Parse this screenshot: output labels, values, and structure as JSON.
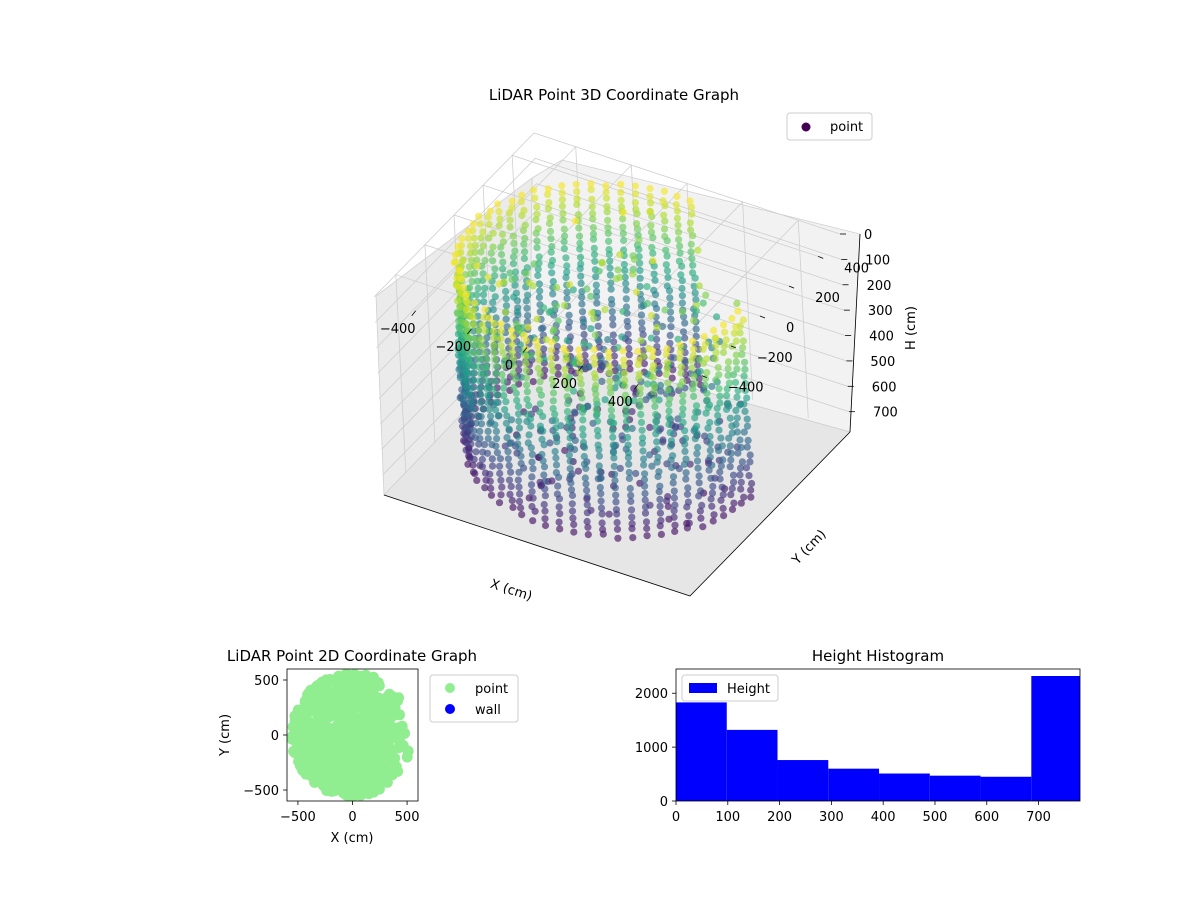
{
  "chart_data": [
    {
      "type": "scatter",
      "projection": "3d",
      "title": "LiDAR Point 3D Coordinate Graph",
      "xlabel": "X (cm)",
      "ylabel": "Y (cm)",
      "zlabel": "H (cm)",
      "xlim": [
        -550,
        550
      ],
      "ylim": [
        -550,
        550
      ],
      "zlim": [
        0,
        780
      ],
      "z_axis_inverted": true,
      "x_ticks": [
        "−400",
        "−200",
        "0",
        "200",
        "400"
      ],
      "x_tick_values": [
        -400,
        -200,
        0,
        200,
        400
      ],
      "y_ticks": [
        "−400",
        "−200",
        "0",
        "200",
        "400"
      ],
      "y_tick_values": [
        -400,
        -200,
        0,
        200,
        400
      ],
      "z_ticks": [
        "0",
        "100",
        "200",
        "300",
        "400",
        "500",
        "600",
        "700"
      ],
      "z_tick_values": [
        0,
        100,
        200,
        300,
        400,
        500,
        600,
        700
      ],
      "colormap": "viridis",
      "legend": {
        "entries": [
          "point"
        ],
        "placement": "top-right"
      },
      "grid": true,
      "series": [
        {
          "name": "point",
          "description": "dense cylindrical wall of points, radius ~480 cm, height 0-760 cm, open at +X/+Y side"
        }
      ]
    },
    {
      "type": "scatter",
      "title": "LiDAR Point 2D Coordinate Graph",
      "xlabel": "X (cm)",
      "ylabel": "Y (cm)",
      "xlim": [
        -600,
        600
      ],
      "ylim": [
        -600,
        600
      ],
      "x_ticks": [
        "−500",
        "0",
        "500"
      ],
      "x_tick_values": [
        -500,
        0,
        500
      ],
      "y_ticks": [
        "−500",
        "0",
        "500"
      ],
      "y_tick_values": [
        -500,
        0,
        500
      ],
      "legend": {
        "entries": [
          "point",
          "wall"
        ],
        "placement": "outside-right"
      },
      "series": [
        {
          "name": "point",
          "color": "#90ee90"
        },
        {
          "name": "wall",
          "color": "#0000ff"
        }
      ]
    },
    {
      "type": "bar",
      "title": "Height Histogram",
      "xlim": [
        0,
        780
      ],
      "ylim": [
        0,
        2450
      ],
      "x_ticks": [
        "0",
        "100",
        "200",
        "300",
        "400",
        "500",
        "600",
        "700"
      ],
      "x_tick_values": [
        0,
        100,
        200,
        300,
        400,
        500,
        600,
        700
      ],
      "y_ticks": [
        "0",
        "1000",
        "2000"
      ],
      "y_tick_values": [
        0,
        1000,
        2000
      ],
      "legend": {
        "entries": [
          "Height"
        ],
        "placement": "top-left"
      },
      "bin_edges": [
        0,
        98,
        196,
        294,
        392,
        490,
        588,
        686,
        784
      ],
      "values": [
        1830,
        1320,
        760,
        600,
        510,
        470,
        450,
        2320
      ],
      "color": "#0000ff",
      "series": [
        {
          "name": "Height",
          "values": [
            1830,
            1320,
            760,
            600,
            510,
            470,
            450,
            2320
          ]
        }
      ]
    }
  ]
}
